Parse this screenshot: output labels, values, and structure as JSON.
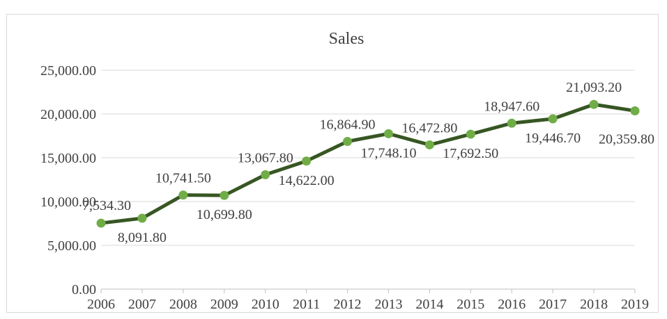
{
  "chart_data": {
    "type": "line",
    "title": "Sales",
    "xlabel": "",
    "ylabel": "",
    "x": [
      "2006",
      "2007",
      "2008",
      "2009",
      "2010",
      "2011",
      "2012",
      "2013",
      "2014",
      "2015",
      "2016",
      "2017",
      "2018",
      "2019"
    ],
    "series": [
      {
        "values": [
          7534.3,
          8091.8,
          10741.5,
          10699.8,
          13067.8,
          14622.0,
          16864.9,
          17748.1,
          16472.8,
          17692.5,
          18947.6,
          19446.7,
          21093.2,
          20359.8
        ],
        "labels": [
          "7,534.30",
          "8,091.80",
          "10,741.50",
          "10,699.80",
          "13,067.80",
          "14,622.00",
          "16,864.90",
          "17,748.10",
          "16,472.80",
          "17,692.50",
          "18,947.60",
          "19,446.70",
          "21,093.20",
          "20,359.80"
        ],
        "line_color": "#375623",
        "marker_color": "#70ad47"
      }
    ],
    "ylim": [
      0,
      25000
    ],
    "yticks": [
      "0.00",
      "5,000.00",
      "10,000.00",
      "15,000.00",
      "20,000.00",
      "25,000.00"
    ],
    "grid": true,
    "legend": "none"
  }
}
